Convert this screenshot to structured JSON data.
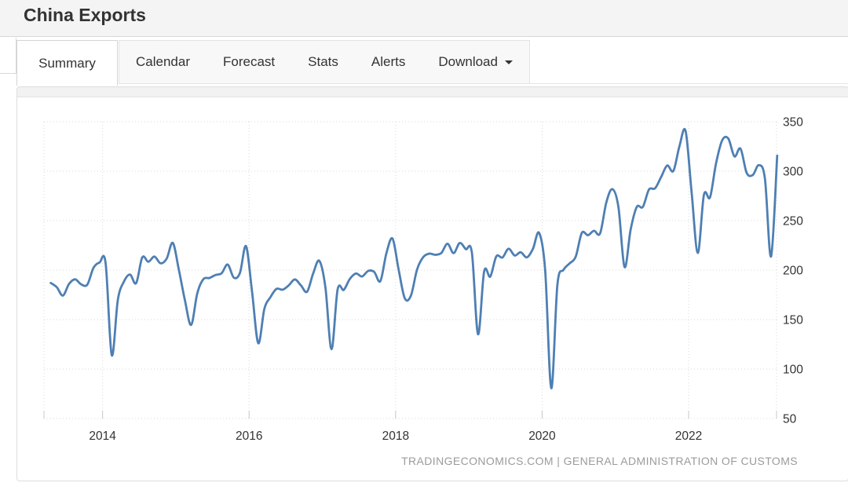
{
  "header": {
    "title": "China Exports"
  },
  "tabs": {
    "items": [
      "Summary",
      "Calendar",
      "Forecast",
      "Stats",
      "Alerts",
      "Download"
    ],
    "active": "Summary"
  },
  "attribution": "TRADINGECONOMICS.COM | GENERAL ADMINISTRATION OF CUSTOMS",
  "colors": {
    "line": "#4e7fb3",
    "grid": "#d8d8d8",
    "tick": "#c8c8c8",
    "axis_text": "#333333",
    "attribution_text": "#9b9b9b",
    "header_bg": "#f4f4f4",
    "panel_border": "#dddddd"
  },
  "chart_data": {
    "type": "line",
    "title": "China Exports",
    "grid": "dotted",
    "legend": "none",
    "smoothing": "spline",
    "ylim": [
      50,
      350
    ],
    "yticks": [
      350,
      300,
      250,
      200,
      150,
      100,
      50
    ],
    "xlim": [
      2013.2,
      2023.2
    ],
    "xticks": [
      2014,
      2016,
      2018,
      2020,
      2022
    ],
    "series": [
      {
        "name": "China Exports",
        "frequency": "monthly",
        "start_year": 2013,
        "start_month": 4,
        "values": [
          187.1,
          182.8,
          174.3,
          186.0,
          190.7,
          185.6,
          185.4,
          202.2,
          207.7,
          207.1,
          114.1,
          170.1,
          188.5,
          195.5,
          186.8,
          212.9,
          208.5,
          213.7,
          206.9,
          211.7,
          227.5,
          200.3,
          169.2,
          144.6,
          176.3,
          190.8,
          192.1,
          195.1,
          196.9,
          205.6,
          192.4,
          197.2,
          224.2,
          177.5,
          126.2,
          160.9,
          172.8,
          181.1,
          180.2,
          184.7,
          190.6,
          184.5,
          178.2,
          196.8,
          209.4,
          182.8,
          120.1,
          180.6,
          180.0,
          191.0,
          196.6,
          193.6,
          199.2,
          198.2,
          188.9,
          217.4,
          231.8,
          200.5,
          171.6,
          174.1,
          200.4,
          212.9,
          216.7,
          215.5,
          217.4,
          226.7,
          217.2,
          227.4,
          221.2,
          217.6,
          135.2,
          198.7,
          193.5,
          213.9,
          212.8,
          221.6,
          214.8,
          218.1,
          212.9,
          221.7,
          237.7,
          200.0,
          80.6,
          185.2,
          200.3,
          206.8,
          213.6,
          237.6,
          235.3,
          239.8,
          237.2,
          268.1,
          281.9,
          263.9,
          203.2,
          241.1,
          263.9,
          263.9,
          281.4,
          282.7,
          294.3,
          305.7,
          300.2,
          325.5,
          340.5,
          278.0,
          217.4,
          276.1,
          273.6,
          308.2,
          331.3,
          332.9,
          314.9,
          322.8,
          298.4,
          296.1,
          306.1,
          292.5,
          213.8,
          315.6
        ]
      }
    ]
  }
}
